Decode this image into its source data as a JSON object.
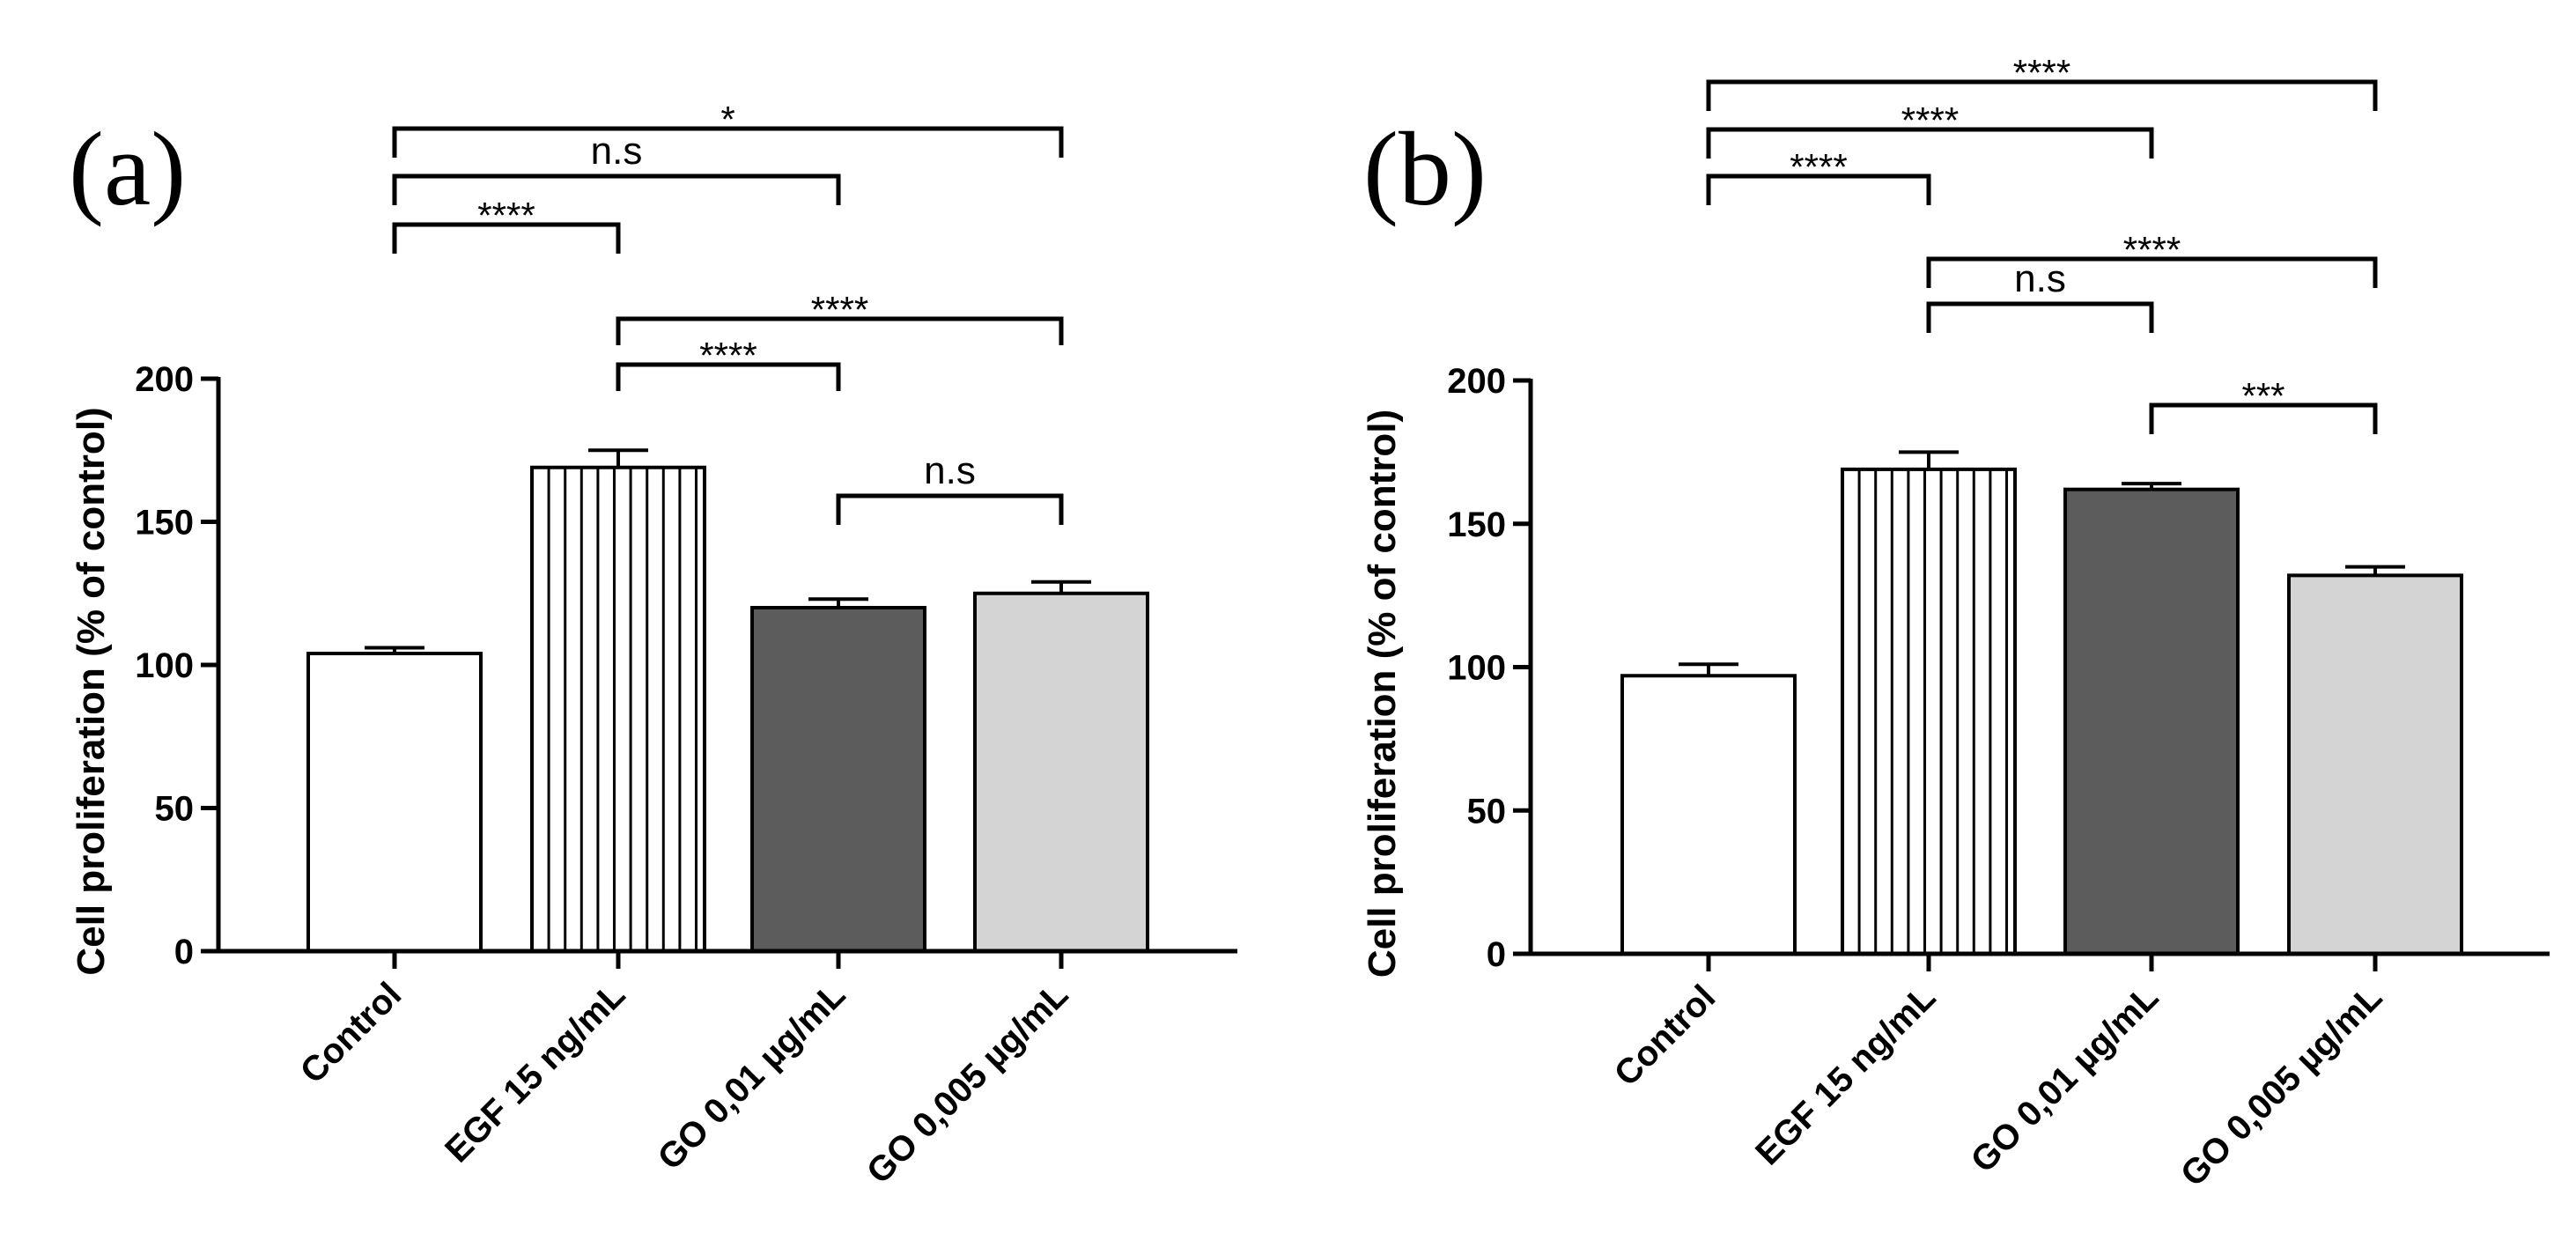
{
  "figure_title": "",
  "chart_data": [
    {
      "type": "bar",
      "panel_label": "(a)",
      "title": "",
      "xlabel": "",
      "ylabel": "Cell proliferation (% of control)",
      "ylim": [
        0,
        200
      ],
      "yticks": [
        0,
        50,
        100,
        150,
        200
      ],
      "categories": [
        "Control",
        "EGF 15 ng/mL",
        "GO 0,01 µg/mL",
        "GO 0,005 µg/mL"
      ],
      "values": [
        104,
        169,
        120,
        125
      ],
      "errors": [
        2,
        6,
        3,
        4
      ],
      "bar_styles": [
        {
          "fill": "#ffffff",
          "pattern": "none"
        },
        {
          "fill": "#ffffff",
          "pattern": "vertical-lines"
        },
        {
          "fill": "#5c5c5c",
          "pattern": "none"
        },
        {
          "fill": "#d4d4d4",
          "pattern": "none"
        }
      ],
      "comparisons": [
        {
          "from": 0,
          "to": 1,
          "label": "****"
        },
        {
          "from": 0,
          "to": 2,
          "label": "n.s"
        },
        {
          "from": 0,
          "to": 3,
          "label": "*"
        },
        {
          "from": 1,
          "to": 2,
          "label": "****"
        },
        {
          "from": 1,
          "to": 3,
          "label": "****"
        },
        {
          "from": 2,
          "to": 3,
          "label": "n.s"
        }
      ]
    },
    {
      "type": "bar",
      "panel_label": "(b)",
      "title": "",
      "xlabel": "",
      "ylabel": "Cell proliferation (% of control)",
      "ylim": [
        0,
        200
      ],
      "yticks": [
        0,
        50,
        100,
        150,
        200
      ],
      "categories": [
        "Control",
        "EGF 15 ng/mL",
        "GO 0,01 µg/mL",
        "GO 0,005 µg/mL"
      ],
      "values": [
        97,
        169,
        162,
        132
      ],
      "errors": [
        4,
        6,
        2,
        3
      ],
      "bar_styles": [
        {
          "fill": "#ffffff",
          "pattern": "none"
        },
        {
          "fill": "#ffffff",
          "pattern": "vertical-lines"
        },
        {
          "fill": "#5c5c5c",
          "pattern": "none"
        },
        {
          "fill": "#d4d4d4",
          "pattern": "none"
        }
      ],
      "comparisons": [
        {
          "from": 0,
          "to": 1,
          "label": "****"
        },
        {
          "from": 0,
          "to": 2,
          "label": "****"
        },
        {
          "from": 0,
          "to": 3,
          "label": "****"
        },
        {
          "from": 1,
          "to": 2,
          "label": "n.s"
        },
        {
          "from": 1,
          "to": 3,
          "label": "****"
        },
        {
          "from": 2,
          "to": 3,
          "label": "***"
        }
      ]
    }
  ]
}
